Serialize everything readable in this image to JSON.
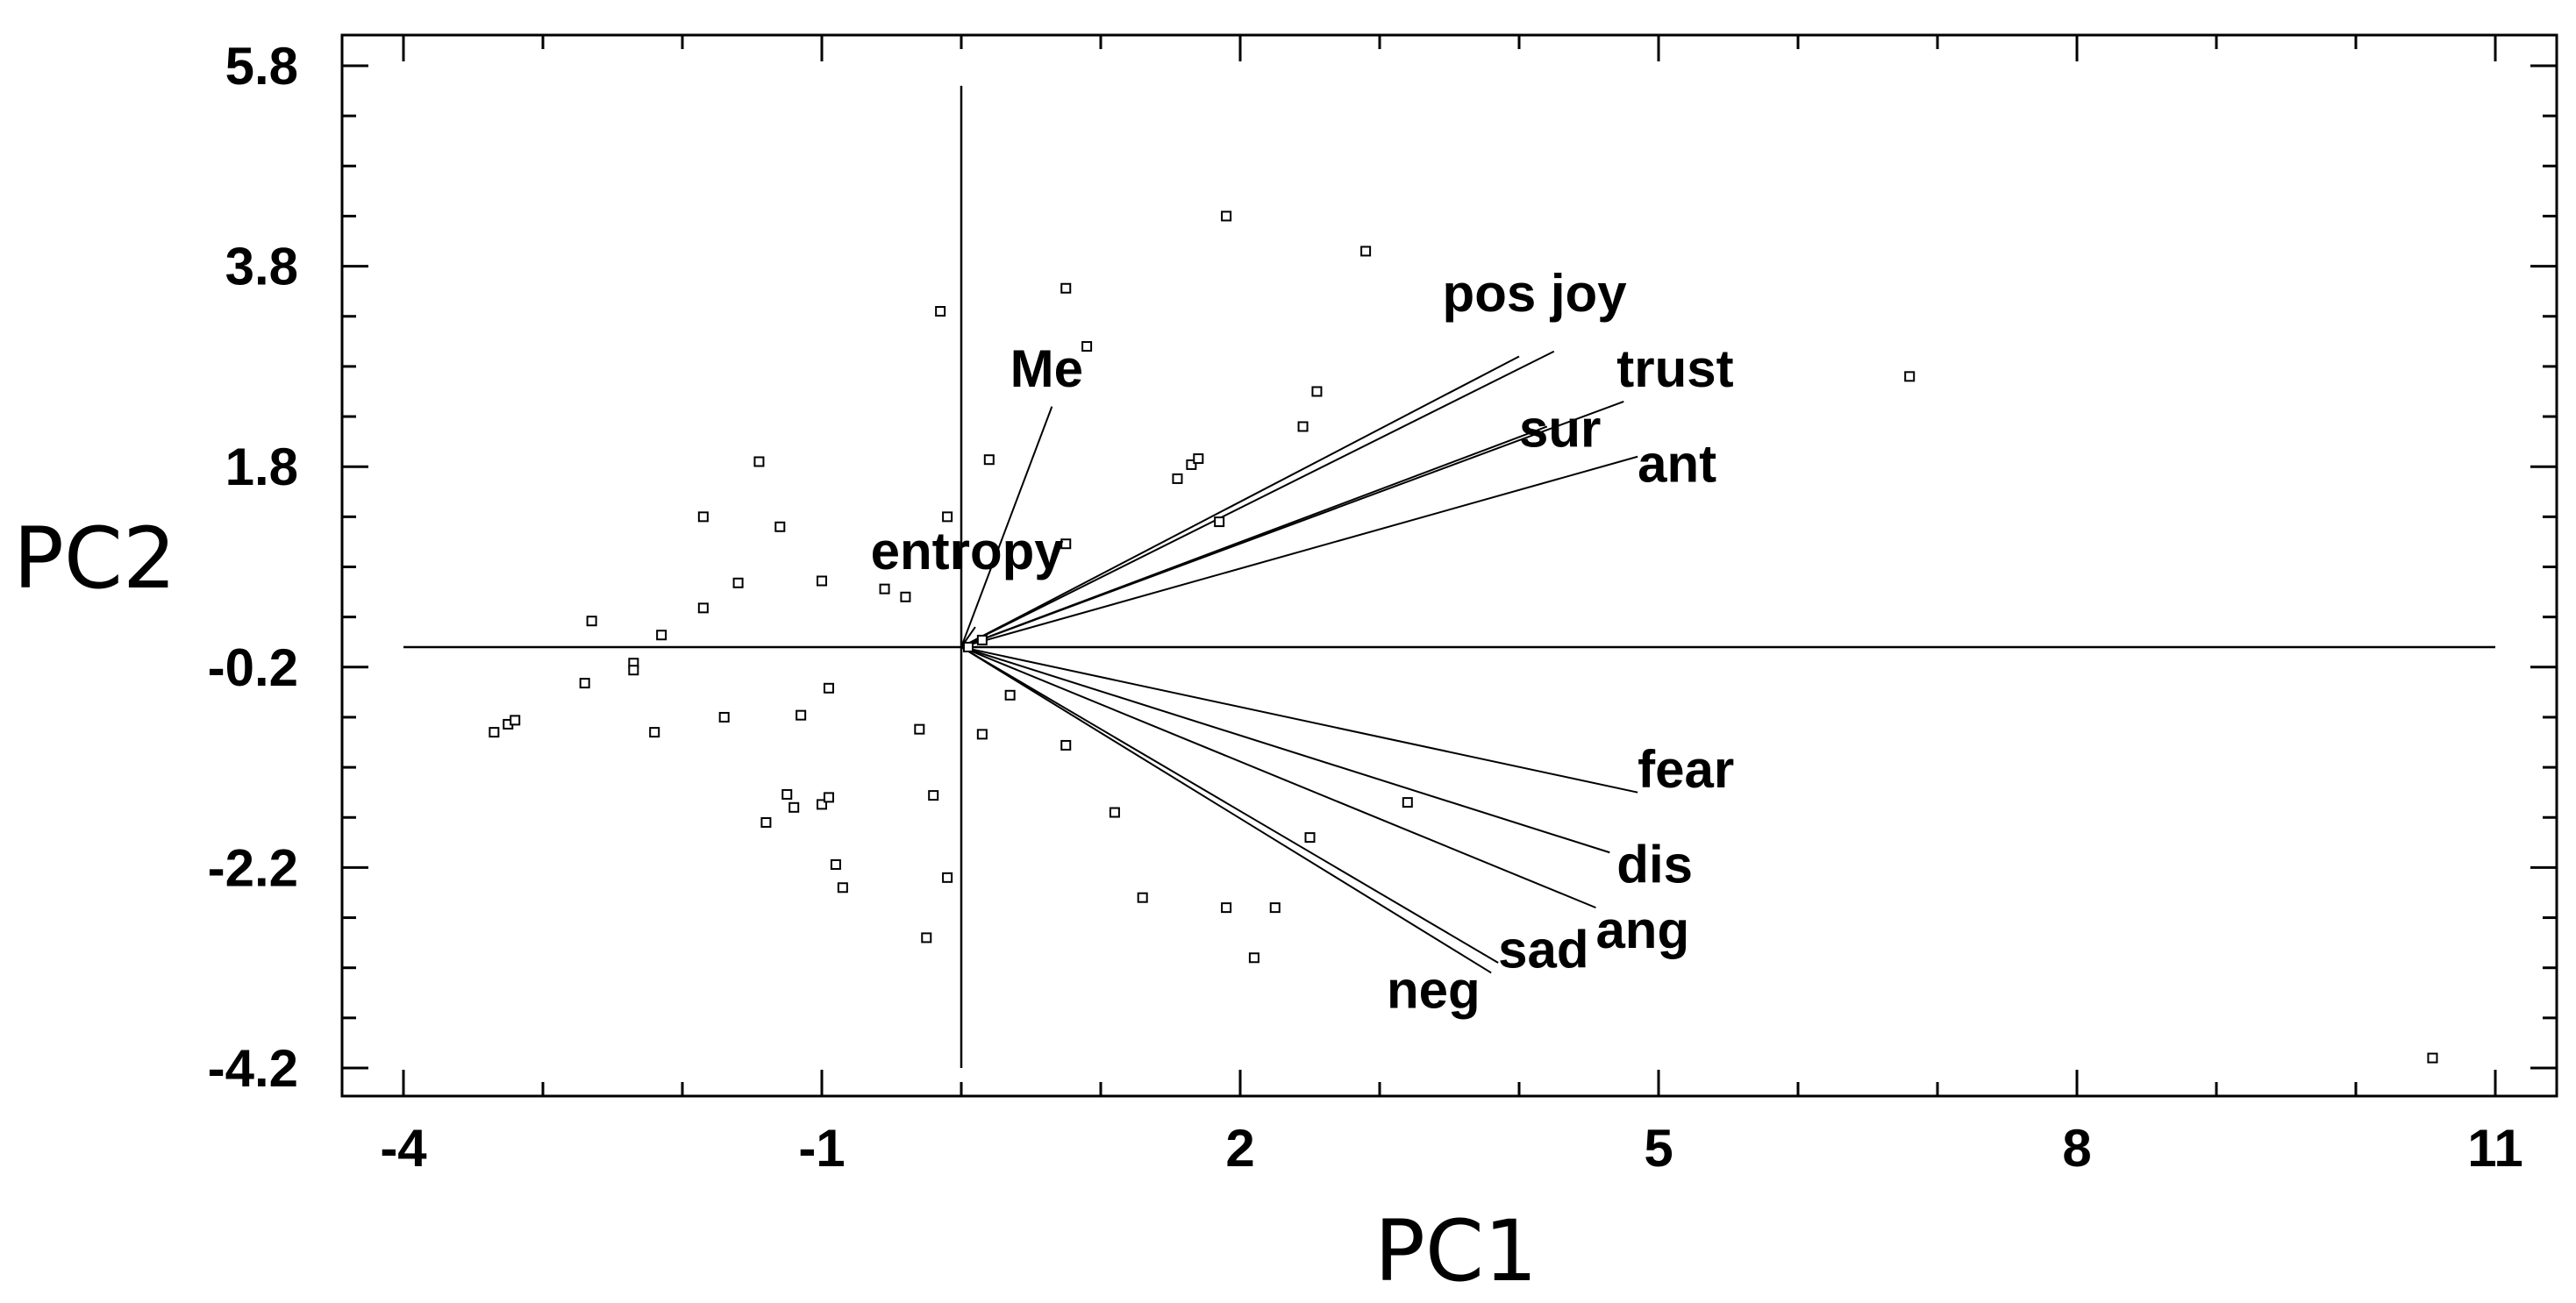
{
  "chart_data": {
    "type": "scatter",
    "title": "",
    "xlabel": "PC1",
    "ylabel": "PC2",
    "xlim": [
      -4,
      11
    ],
    "ylim": [
      -4.2,
      5.8
    ],
    "x_ticks": [
      "-4",
      "-1",
      "2",
      "5",
      "8",
      "11"
    ],
    "y_ticks": [
      "5.8",
      "3.8",
      "1.8",
      "-0.2",
      "-2.2",
      "-4.2"
    ],
    "grid": false,
    "points": [
      [
        -3.35,
        -0.85
      ],
      [
        -3.25,
        -0.77
      ],
      [
        -3.2,
        -0.73
      ],
      [
        -2.7,
        -0.36
      ],
      [
        -2.65,
        0.26
      ],
      [
        -2.35,
        -0.16
      ],
      [
        -2.35,
        -0.23
      ],
      [
        -2.2,
        -0.85
      ],
      [
        -2.15,
        0.12
      ],
      [
        -1.85,
        0.39
      ],
      [
        -1.85,
        1.3
      ],
      [
        -1.7,
        -0.7
      ],
      [
        -1.6,
        0.64
      ],
      [
        -1.45,
        1.85
      ],
      [
        -1.4,
        -1.75
      ],
      [
        -1.3,
        1.2
      ],
      [
        -1.25,
        -1.47
      ],
      [
        -1.2,
        -1.6
      ],
      [
        -1.15,
        -0.68
      ],
      [
        -1.0,
        -1.57
      ],
      [
        -0.95,
        -0.41
      ],
      [
        -0.95,
        -1.5
      ],
      [
        -1.0,
        0.66
      ],
      [
        -0.9,
        -2.17
      ],
      [
        -0.85,
        -2.4
      ],
      [
        -0.55,
        0.58
      ],
      [
        -0.4,
        0.5
      ],
      [
        -0.3,
        -0.82
      ],
      [
        -0.25,
        -2.9
      ],
      [
        -0.2,
        -1.48
      ],
      [
        -0.15,
        3.35
      ],
      [
        -0.1,
        -2.3
      ],
      [
        -0.1,
        1.3
      ],
      [
        0.05,
        0.0
      ],
      [
        0.15,
        0.07
      ],
      [
        0.15,
        -0.87
      ],
      [
        0.2,
        1.87
      ],
      [
        0.35,
        -0.48
      ],
      [
        0.75,
        -0.98
      ],
      [
        0.75,
        3.58
      ],
      [
        0.75,
        1.03
      ],
      [
        0.9,
        3.0
      ],
      [
        1.1,
        -1.65
      ],
      [
        1.3,
        -2.5
      ],
      [
        1.55,
        1.68
      ],
      [
        1.65,
        1.82
      ],
      [
        1.7,
        1.88
      ],
      [
        1.85,
        1.25
      ],
      [
        1.9,
        4.3
      ],
      [
        1.9,
        -2.6
      ],
      [
        2.1,
        -3.1
      ],
      [
        2.25,
        -2.6
      ],
      [
        2.45,
        2.2
      ],
      [
        2.5,
        -1.9
      ],
      [
        2.55,
        2.55
      ],
      [
        2.9,
        3.95
      ],
      [
        3.2,
        -1.55
      ],
      [
        6.8,
        2.7
      ],
      [
        10.55,
        -4.1
      ]
    ],
    "vectors": [
      {
        "name": "Me",
        "x": 0.65,
        "y": 2.4
      },
      {
        "name": "entropy",
        "x": 0.1,
        "y": 0.2
      },
      {
        "name": "pos",
        "x": 4.0,
        "y": 2.9
      },
      {
        "name": "joy",
        "x": 4.25,
        "y": 2.95
      },
      {
        "name": "trust",
        "x": 4.75,
        "y": 2.45
      },
      {
        "name": "sur",
        "x": 4.2,
        "y": 2.2
      },
      {
        "name": "ant",
        "x": 4.85,
        "y": 1.9
      },
      {
        "name": "fear",
        "x": 4.85,
        "y": -1.45
      },
      {
        "name": "dis",
        "x": 4.65,
        "y": -2.05
      },
      {
        "name": "ang",
        "x": 4.55,
        "y": -2.6
      },
      {
        "name": "sad",
        "x": 3.85,
        "y": -3.15
      },
      {
        "name": "neg",
        "x": 3.8,
        "y": -3.25
      }
    ],
    "vector_labels": [
      {
        "text": "Me",
        "x": 0.35,
        "y": 2.6
      },
      {
        "text": "entropy",
        "x": -0.65,
        "y": 0.78
      },
      {
        "text": "pos joy",
        "x": 3.45,
        "y": 3.35
      },
      {
        "text": "trust",
        "x": 4.7,
        "y": 2.6
      },
      {
        "text": "sur",
        "x": 4.0,
        "y": 2.0
      },
      {
        "text": "ant",
        "x": 4.85,
        "y": 1.65
      },
      {
        "text": "fear",
        "x": 4.85,
        "y": -1.4
      },
      {
        "text": "dis",
        "x": 4.7,
        "y": -2.35
      },
      {
        "text": "ang",
        "x": 4.55,
        "y": -3.0
      },
      {
        "text": "sad",
        "x": 3.85,
        "y": -3.2
      },
      {
        "text": "neg",
        "x": 3.05,
        "y": -3.6
      }
    ]
  }
}
